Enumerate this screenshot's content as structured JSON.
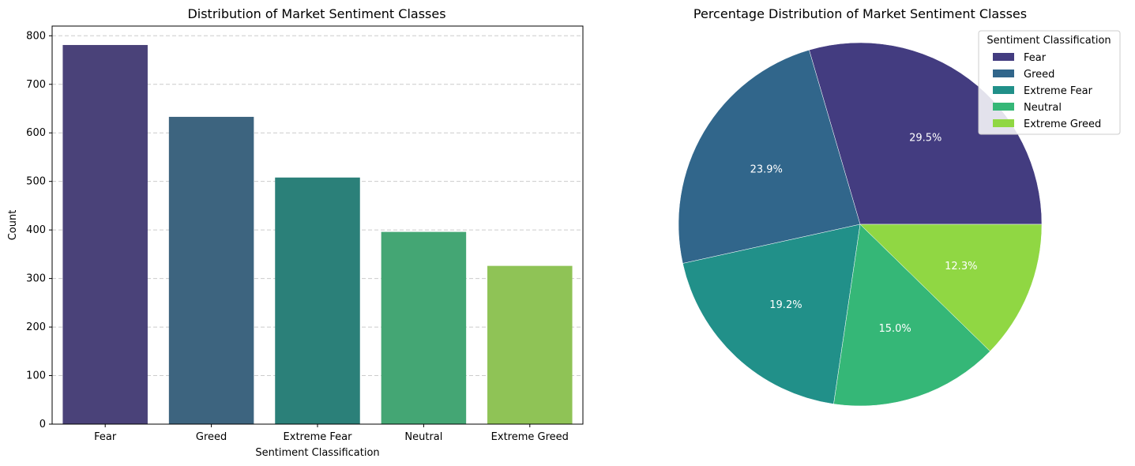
{
  "chart_data": [
    {
      "type": "bar",
      "title": "Distribution of Market Sentiment Classes",
      "xlabel": "Sentiment Classification",
      "ylabel": "Count",
      "categories": [
        "Fear",
        "Greed",
        "Extreme Fear",
        "Neutral",
        "Extreme Greed"
      ],
      "values": [
        781,
        633,
        508,
        396,
        326
      ],
      "colors": [
        "#4a4279",
        "#3d647f",
        "#2b8079",
        "#44a674",
        "#8fc356"
      ],
      "ylim": [
        0,
        820
      ],
      "yticks": [
        0,
        100,
        200,
        300,
        400,
        500,
        600,
        700,
        800
      ],
      "grid": "y-dashed"
    },
    {
      "type": "pie",
      "title": "Percentage Distribution of Market Sentiment Classes",
      "labels": [
        "Fear",
        "Greed",
        "Extreme Fear",
        "Neutral",
        "Extreme Greed"
      ],
      "values": [
        29.5,
        23.9,
        19.2,
        15.0,
        12.3
      ],
      "pct_labels": [
        "29.5%",
        "23.9%",
        "19.2%",
        "15.0%",
        "12.3%"
      ],
      "colors": [
        "#433c80",
        "#31668b",
        "#219089",
        "#35b777",
        "#90d743"
      ],
      "legend": {
        "title": "Sentiment Classification",
        "position": "top-right"
      }
    }
  ]
}
